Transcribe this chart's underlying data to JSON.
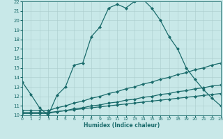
{
  "xlabel": "Humidex (Indice chaleur)",
  "background_color": "#c8e8e8",
  "line_color": "#1a6b6b",
  "grid_color": "#aacccc",
  "xlim": [
    0,
    23
  ],
  "ylim": [
    10,
    22
  ],
  "yticks": [
    10,
    11,
    12,
    13,
    14,
    15,
    16,
    17,
    18,
    19,
    20,
    21,
    22
  ],
  "xticks": [
    0,
    1,
    2,
    3,
    4,
    5,
    6,
    7,
    8,
    9,
    10,
    11,
    12,
    13,
    14,
    15,
    16,
    17,
    18,
    19,
    20,
    21,
    22,
    23
  ],
  "line1_x": [
    0,
    1,
    2,
    3,
    4,
    5,
    6,
    7,
    8,
    9,
    10,
    11,
    12,
    13,
    14,
    15,
    16,
    17,
    18,
    19,
    20,
    21,
    22,
    23
  ],
  "line1_y": [
    13.5,
    12.2,
    10.8,
    10.0,
    12.1,
    13.0,
    15.3,
    15.5,
    18.3,
    19.3,
    21.3,
    21.7,
    21.3,
    22.0,
    22.2,
    21.3,
    20.0,
    18.3,
    17.0,
    15.0,
    13.8,
    12.7,
    11.8,
    11.0
  ],
  "line2_x": [
    0,
    1,
    2,
    3,
    4,
    5,
    6,
    7,
    8,
    9,
    10,
    11,
    12,
    13,
    14,
    15,
    16,
    17,
    18,
    19,
    20,
    21,
    22,
    23
  ],
  "line2_y": [
    10.5,
    10.5,
    10.5,
    10.5,
    10.8,
    11.0,
    11.3,
    11.5,
    11.8,
    12.0,
    12.3,
    12.5,
    12.8,
    13.0,
    13.3,
    13.5,
    13.8,
    14.0,
    14.3,
    14.5,
    14.8,
    15.0,
    15.3,
    15.5
  ],
  "line3_x": [
    0,
    1,
    2,
    3,
    4,
    5,
    6,
    7,
    8,
    9,
    10,
    11,
    12,
    13,
    14,
    15,
    16,
    17,
    18,
    19,
    20,
    21,
    22,
    23
  ],
  "line3_y": [
    10.2,
    10.2,
    10.2,
    10.2,
    10.4,
    10.5,
    10.7,
    10.8,
    11.0,
    11.1,
    11.3,
    11.4,
    11.6,
    11.7,
    11.9,
    12.0,
    12.2,
    12.3,
    12.5,
    12.6,
    12.8,
    12.9,
    13.1,
    13.2
  ],
  "line4_x": [
    0,
    1,
    2,
    3,
    4,
    5,
    6,
    7,
    8,
    9,
    10,
    11,
    12,
    13,
    14,
    15,
    16,
    17,
    18,
    19,
    20,
    21,
    22,
    23
  ],
  "line4_y": [
    10.3,
    10.3,
    10.3,
    10.3,
    10.4,
    10.5,
    10.6,
    10.7,
    10.8,
    10.9,
    11.0,
    11.1,
    11.2,
    11.3,
    11.4,
    11.5,
    11.6,
    11.7,
    11.8,
    11.9,
    12.0,
    12.1,
    12.2,
    12.3
  ],
  "markersize": 2.5,
  "linewidth": 0.9
}
